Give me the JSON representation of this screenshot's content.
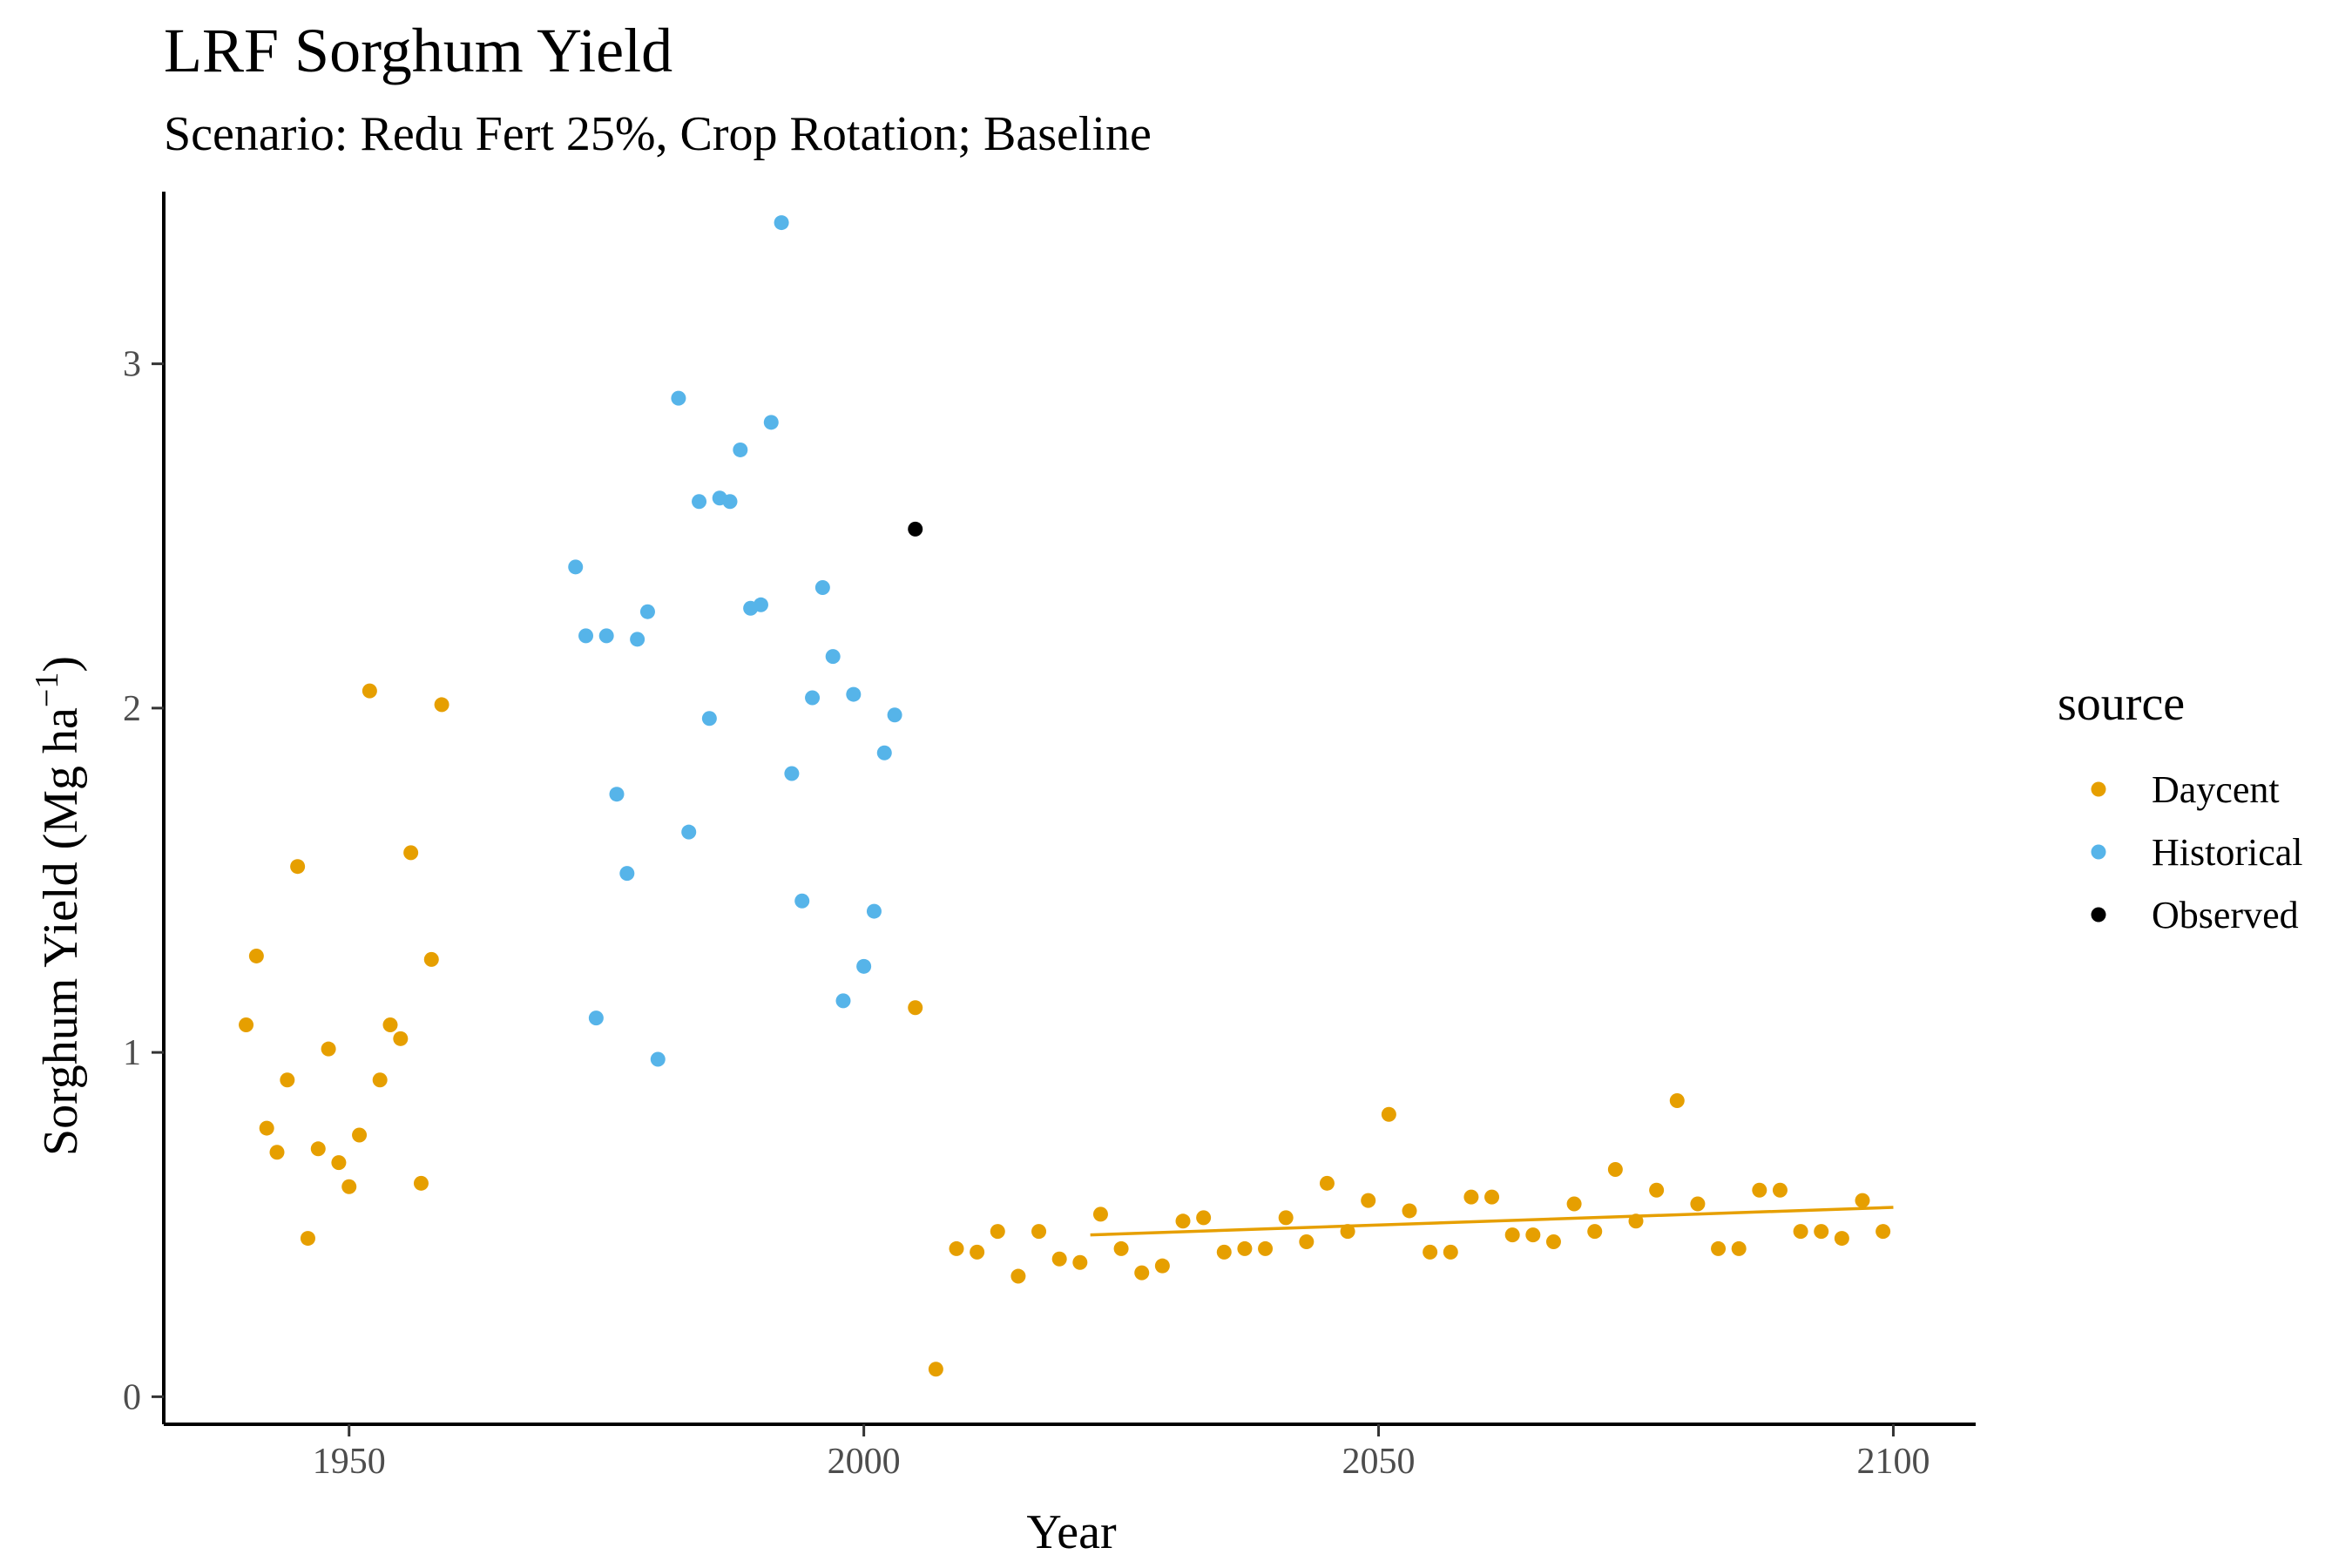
{
  "chart_data": {
    "type": "scatter",
    "title": "LRF Sorghum Yield",
    "subtitle": "Scenario: Redu Fert 25%, Crop Rotation; Baseline",
    "xlabel": "Year",
    "ylabel_main": "Sorghum Yield (Mg ha",
    "ylabel_sup": "−1",
    "ylabel_close": ")",
    "xlim": [
      1932,
      2108
    ],
    "ylim": [
      -0.08,
      3.5
    ],
    "x_ticks": [
      1950,
      2000,
      2050,
      2100
    ],
    "y_ticks": [
      0,
      1,
      2,
      3
    ],
    "grid": false,
    "legend": {
      "title": "source",
      "position": "right",
      "entries": [
        {
          "name": "Daycent",
          "color": "#E69F00"
        },
        {
          "name": "Historical",
          "color": "#56B4E9"
        },
        {
          "name": "Observed",
          "color": "#000000"
        }
      ]
    },
    "series": [
      {
        "name": "Daycent",
        "color": "#E69F00",
        "points": [
          [
            1940,
            1.08
          ],
          [
            1941,
            1.28
          ],
          [
            1942,
            0.78
          ],
          [
            1943,
            0.71
          ],
          [
            1944,
            0.92
          ],
          [
            1945,
            1.54
          ],
          [
            1946,
            0.46
          ],
          [
            1947,
            0.72
          ],
          [
            1948,
            1.01
          ],
          [
            1949,
            0.68
          ],
          [
            1950,
            0.61
          ],
          [
            1951,
            0.76
          ],
          [
            1952,
            2.05
          ],
          [
            1953,
            0.92
          ],
          [
            1954,
            1.08
          ],
          [
            1955,
            1.04
          ],
          [
            1956,
            1.58
          ],
          [
            1957,
            0.62
          ],
          [
            1958,
            1.27
          ],
          [
            1959,
            2.01
          ],
          [
            2005,
            1.13
          ],
          [
            2007,
            0.08
          ],
          [
            2009,
            0.43
          ],
          [
            2011,
            0.42
          ],
          [
            2013,
            0.48
          ],
          [
            2015,
            0.35
          ],
          [
            2017,
            0.48
          ],
          [
            2019,
            0.4
          ],
          [
            2021,
            0.39
          ],
          [
            2023,
            0.53
          ],
          [
            2025,
            0.43
          ],
          [
            2027,
            0.36
          ],
          [
            2029,
            0.38
          ],
          [
            2031,
            0.51
          ],
          [
            2033,
            0.52
          ],
          [
            2035,
            0.42
          ],
          [
            2037,
            0.43
          ],
          [
            2039,
            0.43
          ],
          [
            2041,
            0.52
          ],
          [
            2043,
            0.45
          ],
          [
            2045,
            0.62
          ],
          [
            2047,
            0.48
          ],
          [
            2049,
            0.57
          ],
          [
            2051,
            0.82
          ],
          [
            2053,
            0.54
          ],
          [
            2055,
            0.42
          ],
          [
            2057,
            0.42
          ],
          [
            2059,
            0.58
          ],
          [
            2061,
            0.58
          ],
          [
            2063,
            0.47
          ],
          [
            2065,
            0.47
          ],
          [
            2067,
            0.45
          ],
          [
            2069,
            0.56
          ],
          [
            2071,
            0.48
          ],
          [
            2073,
            0.66
          ],
          [
            2075,
            0.51
          ],
          [
            2077,
            0.6
          ],
          [
            2079,
            0.86
          ],
          [
            2081,
            0.56
          ],
          [
            2083,
            0.43
          ],
          [
            2085,
            0.43
          ],
          [
            2087,
            0.6
          ],
          [
            2089,
            0.6
          ],
          [
            2091,
            0.48
          ],
          [
            2093,
            0.48
          ],
          [
            2095,
            0.46
          ],
          [
            2097,
            0.57
          ],
          [
            2099,
            0.48
          ]
        ],
        "trend_line": [
          [
            2022,
            0.47
          ],
          [
            2100,
            0.55
          ]
        ]
      },
      {
        "name": "Historical",
        "color": "#56B4E9",
        "points": [
          [
            1972,
            2.41
          ],
          [
            1973,
            2.21
          ],
          [
            1974,
            1.1
          ],
          [
            1975,
            2.21
          ],
          [
            1976,
            1.75
          ],
          [
            1977,
            1.52
          ],
          [
            1978,
            2.2
          ],
          [
            1979,
            2.28
          ],
          [
            1980,
            0.98
          ],
          [
            1982,
            2.9
          ],
          [
            1983,
            1.64
          ],
          [
            1984,
            2.6
          ],
          [
            1985,
            1.97
          ],
          [
            1986,
            2.61
          ],
          [
            1987,
            2.6
          ],
          [
            1988,
            2.75
          ],
          [
            1989,
            2.29
          ],
          [
            1990,
            2.3
          ],
          [
            1991,
            2.83
          ],
          [
            1992,
            3.41
          ],
          [
            1993,
            1.81
          ],
          [
            1994,
            1.44
          ],
          [
            1995,
            2.03
          ],
          [
            1996,
            2.35
          ],
          [
            1997,
            2.15
          ],
          [
            1998,
            1.15
          ],
          [
            1999,
            2.04
          ],
          [
            2000,
            1.25
          ],
          [
            2001,
            1.41
          ],
          [
            2002,
            1.87
          ],
          [
            2003,
            1.98
          ]
        ]
      },
      {
        "name": "Observed",
        "color": "#000000",
        "points": [
          [
            2005,
            2.52
          ]
        ]
      }
    ]
  }
}
